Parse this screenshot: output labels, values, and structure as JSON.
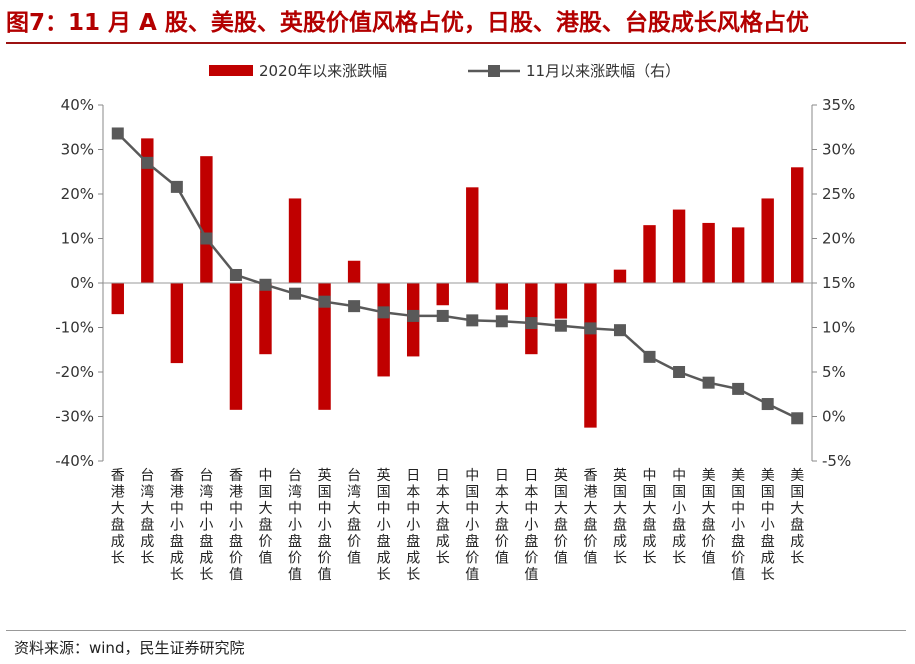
{
  "title": "图7：11 月 A 股、美股、英股价值风格占优，日股、港股、台股成长风格占优",
  "source": "资料来源：wind，民生证券研究院",
  "colors": {
    "bar": "#c00000",
    "line": "#595959",
    "title": "#b30000"
  },
  "chart_data": {
    "type": "bar+line",
    "categories": [
      "香港大盘成长",
      "台湾大盘成长",
      "香港中小盘成长",
      "台湾中小盘成长",
      "香港中小盘价值",
      "中国大盘价值",
      "台湾中小盘价值",
      "英国中小盘价值",
      "台湾大盘价值",
      "英国中小盘成长",
      "日本中小盘成长",
      "日本大盘成长",
      "中国中小盘价值",
      "日本大盘价值",
      "日本中小盘价值",
      "英国大盘价值",
      "香港大盘价值",
      "英国大盘成长",
      "中国大盘成长",
      "中国小盘成长",
      "美国大盘价值",
      "美国中小盘价值",
      "美国中小盘成长",
      "美国大盘成长"
    ],
    "series": [
      {
        "name": "2020年以来涨跌幅",
        "type": "bar",
        "axis": "left",
        "values": [
          -7,
          32.5,
          -18,
          28.5,
          -28.5,
          -16,
          19,
          -28.5,
          5,
          -21,
          -16.5,
          -5,
          21.5,
          -6,
          -16,
          -8,
          -32.5,
          3,
          13,
          16.5,
          13.5,
          12.5,
          19,
          26
        ]
      },
      {
        "name": "11月以来涨跌幅（右）",
        "type": "line",
        "axis": "right",
        "values": [
          31.8,
          28.5,
          25.8,
          20.0,
          15.9,
          14.8,
          13.8,
          12.9,
          12.4,
          11.7,
          11.3,
          11.3,
          10.8,
          10.7,
          10.5,
          10.2,
          9.9,
          9.7,
          6.7,
          5.0,
          3.8,
          3.1,
          1.4,
          -0.2
        ]
      }
    ],
    "y_left": {
      "min": -40,
      "max": 40,
      "step": 10,
      "format": "percent"
    },
    "y_right": {
      "min": -5,
      "max": 35,
      "step": 5,
      "format": "percent"
    },
    "legend": {
      "position": "top"
    },
    "grid": false
  }
}
